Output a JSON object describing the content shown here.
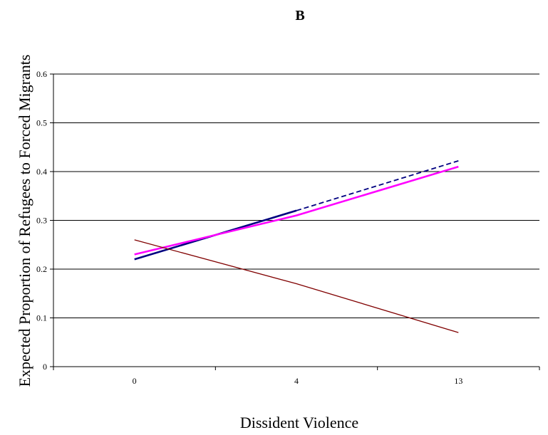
{
  "chart_data": {
    "type": "line",
    "title": "B",
    "xlabel": "Dissident Violence",
    "ylabel": "Expected Proportion of Refugees to Forced Migrants",
    "categories": [
      "0",
      "4",
      "13"
    ],
    "ylim": [
      0,
      0.6
    ],
    "yticks": [
      "0",
      "0.1",
      "0.2",
      "0.3",
      "0.4",
      "0.5",
      "0.6"
    ],
    "grid": "horizontal",
    "legend": "none",
    "series": [
      {
        "color": "#000080",
        "style": "solid",
        "values": [
          0.22,
          0.32,
          null
        ]
      },
      {
        "color": "#000080",
        "style": "dashed",
        "values": [
          null,
          0.32,
          0.422
        ]
      },
      {
        "color": "#ff00ff",
        "style": "solid",
        "values": [
          0.23,
          0.31,
          0.41
        ]
      },
      {
        "color": "#800000",
        "style": "solid",
        "values": [
          0.26,
          0.17,
          0.07
        ]
      }
    ]
  }
}
